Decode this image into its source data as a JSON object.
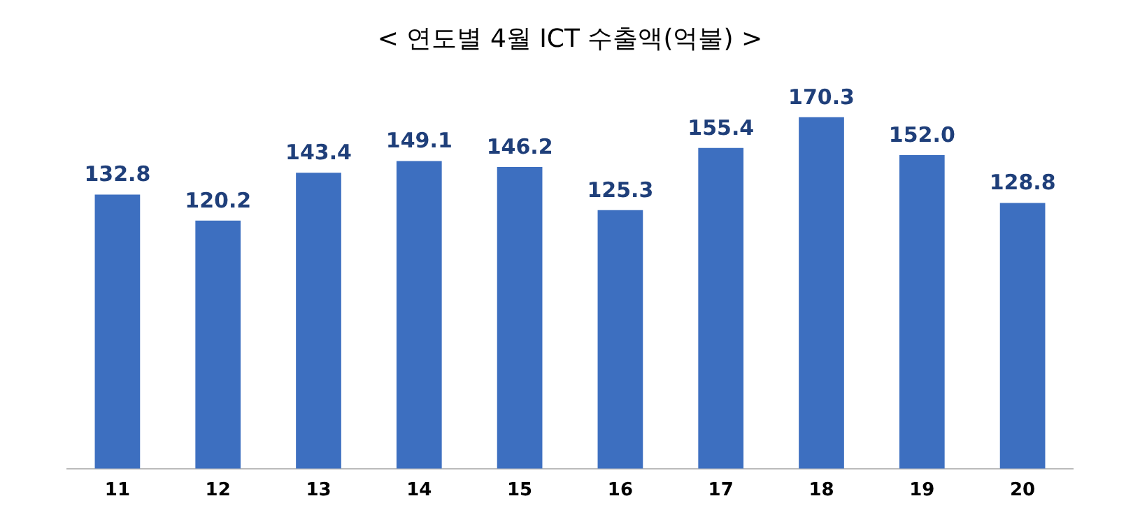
{
  "chart_data": {
    "type": "bar",
    "title": "< 연도별 4월 ICT 수출액(억불) >",
    "categories": [
      "11",
      "12",
      "13",
      "14",
      "15",
      "16",
      "17",
      "18",
      "19",
      "20"
    ],
    "values": [
      132.8,
      120.2,
      143.4,
      149.1,
      146.2,
      125.3,
      155.4,
      170.3,
      152.0,
      128.8
    ],
    "value_labels": [
      "132.8",
      "120.2",
      "143.4",
      "149.1",
      "146.2",
      "125.3",
      "155.4",
      "170.3",
      "152.0",
      "128.8"
    ],
    "color": "#3d6fc0",
    "grid": false,
    "legend": false
  }
}
